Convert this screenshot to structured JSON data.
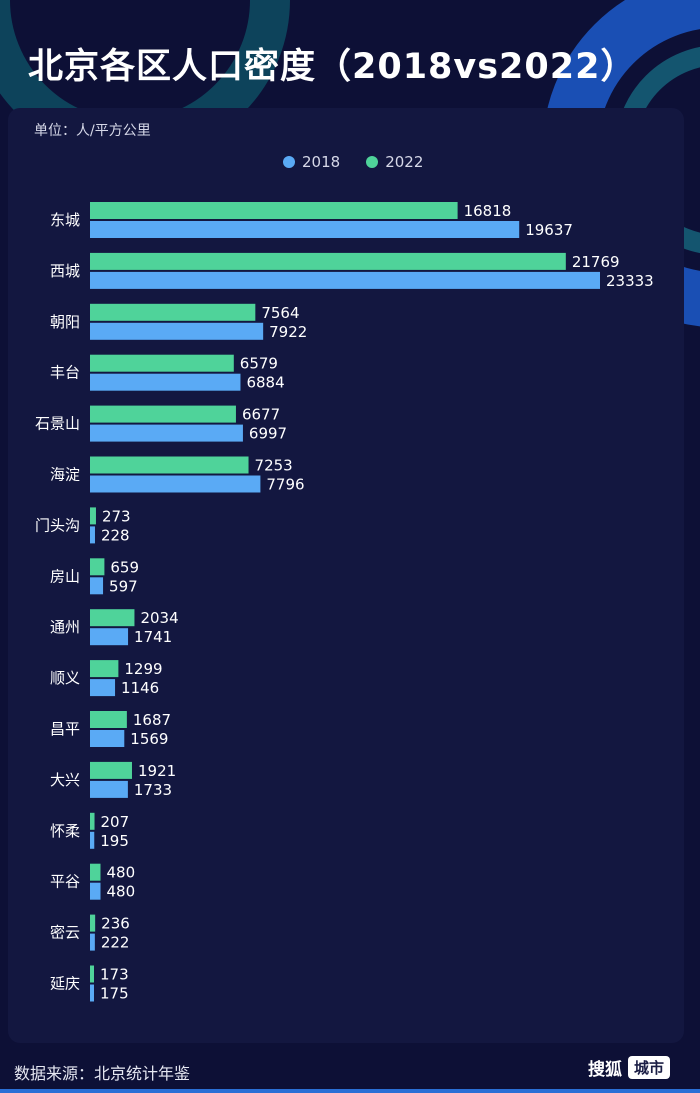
{
  "title": "北京各区人口密度（2018vs2022）",
  "unit_label": "单位：人/平方公里",
  "legend": [
    {
      "label": "2018",
      "color": "#5aaaf5"
    },
    {
      "label": "2022",
      "color": "#4fd39a"
    }
  ],
  "footer": {
    "source": "数据来源：北京统计年鉴",
    "brand_name": "搜狐",
    "brand_tag": "城市"
  },
  "chart_data": {
    "type": "bar",
    "orientation": "horizontal",
    "title": "北京各区人口密度（2018vs2022）",
    "ylabel": "单位：人/平方公里",
    "categories": [
      "东城",
      "西城",
      "朝阳",
      "丰台",
      "石景山",
      "海淀",
      "门头沟",
      "房山",
      "通州",
      "顺义",
      "昌平",
      "大兴",
      "怀柔",
      "平谷",
      "密云",
      "延庆"
    ],
    "series": [
      {
        "name": "2022",
        "color": "#4fd39a",
        "values": [
          16818,
          21769,
          7564,
          6579,
          6677,
          7253,
          273,
          659,
          2034,
          1299,
          1687,
          1921,
          207,
          480,
          236,
          173
        ]
      },
      {
        "name": "2018",
        "color": "#5aaaf5",
        "values": [
          19637,
          23333,
          7922,
          6884,
          6997,
          7796,
          228,
          597,
          1741,
          1146,
          1569,
          1733,
          195,
          480,
          222,
          175
        ]
      }
    ],
    "xlim": [
      0,
      23333
    ]
  }
}
